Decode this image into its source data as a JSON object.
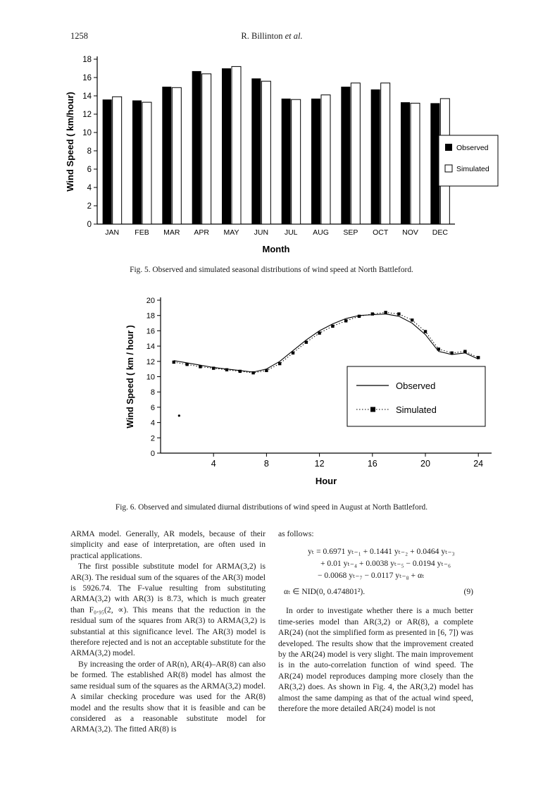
{
  "header": {
    "page_number": "1258",
    "author": "R. Billinton",
    "etal": "et al."
  },
  "figures": {
    "fig5_caption": "Fig. 5. Observed and simulated seasonal distributions of wind speed at North Battleford.",
    "fig6_caption": "Fig. 6. Observed and simulated diurnal distributions of wind speed in August at North Battleford."
  },
  "chart_data": [
    {
      "type": "bar",
      "title": "",
      "xlabel": "Month",
      "ylabel": "Wind Speed ( km/hour)",
      "ylim": [
        0,
        18
      ],
      "ytick_step": 2,
      "grid": false,
      "legend_position": "right",
      "categories": [
        "JAN",
        "FEB",
        "MAR",
        "APR",
        "MAY",
        "JUN",
        "JUL",
        "AUG",
        "SEP",
        "OCT",
        "NOV",
        "DEC"
      ],
      "series": [
        {
          "name": "Observed",
          "fill": "#000000",
          "values": [
            13.6,
            13.5,
            15.0,
            16.7,
            17.0,
            15.9,
            13.7,
            13.7,
            15.0,
            14.7,
            13.3,
            13.2
          ]
        },
        {
          "name": "Simulated",
          "fill": "#ffffff",
          "values": [
            13.9,
            13.3,
            14.9,
            16.4,
            17.2,
            15.6,
            13.6,
            14.1,
            15.4,
            15.4,
            13.2,
            13.7
          ]
        }
      ]
    },
    {
      "type": "line",
      "title": "",
      "xlabel": "Hour",
      "ylabel": "Wind Speed  ( km / hour )",
      "ylim": [
        0,
        20
      ],
      "ytick_step": 2,
      "xlim": [
        0,
        25
      ],
      "xticks": [
        4,
        8,
        12,
        16,
        20,
        24
      ],
      "grid": false,
      "legend_position": "inside-right",
      "x": [
        1,
        2,
        3,
        4,
        5,
        6,
        7,
        8,
        9,
        10,
        11,
        12,
        13,
        14,
        15,
        16,
        17,
        18,
        19,
        20,
        21,
        22,
        23,
        24
      ],
      "series": [
        {
          "name": "Observed",
          "style": "solid",
          "values": [
            12.1,
            11.8,
            11.5,
            11.2,
            11.0,
            10.8,
            10.6,
            11.0,
            12.0,
            13.4,
            14.8,
            16.0,
            16.9,
            17.6,
            18.0,
            18.1,
            18.2,
            17.9,
            17.0,
            15.5,
            13.3,
            12.9,
            13.1,
            12.3
          ]
        },
        {
          "name": "Simulated",
          "style": "dotted-square",
          "values": [
            11.9,
            11.6,
            11.3,
            11.1,
            10.9,
            10.7,
            10.5,
            10.8,
            11.7,
            13.1,
            14.5,
            15.7,
            16.6,
            17.3,
            17.9,
            18.2,
            18.4,
            18.2,
            17.4,
            15.9,
            13.6,
            13.1,
            13.3,
            12.5
          ]
        }
      ],
      "stray_mark": {
        "x": 1.4,
        "y": 4.9
      }
    }
  ],
  "body": {
    "left_column": [
      {
        "indent": false,
        "text": "ARMA model. Generally, AR models, because of their simplicity and ease of interpretation, are often used in practical applications."
      },
      {
        "indent": true,
        "text": "The first possible substitute model for ARMA(3,2) is AR(3). The residual sum of the squares of the AR(3) model is 5926.74. The F-value resulting from substituting ARMA(3,2) with AR(3) is 8.73, which is much greater than F₀.₉₅(2, ∝). This means that the reduction in the residual sum of the squares from AR(3) to ARMA(3,2) is substantial at this significance level. The AR(3) model is therefore rejected and is not an acceptable substitute for the ARMA(3,2) model."
      },
      {
        "indent": true,
        "text": "By increasing the order of AR(n), AR(4)–AR(8) can also be formed. The established AR(8) model has almost the same residual sum of the squares as the ARMA(3,2) model. A similar checking procedure was used for the AR(8) model and the results show that it is feasible and can be considered as a reasonable substitute model for ARMA(3,2). The fitted AR(8) is"
      }
    ],
    "right_intro": "as follows:",
    "equation": {
      "lines": [
        "yₜ = 0.6971 yₜ₋₁ + 0.1441 yₜ₋₂ + 0.0464 yₜ₋₃",
        "+ 0.01 yₜ₋₄ + 0.0038 yₜ₋₅ − 0.0194 yₜ₋₆",
        "− 0.0068 yₜ₋₇ − 0.0117 yₜ₋₈ + αₜ"
      ],
      "condition": "αₜ ∈ NID(0, 0.474801²).",
      "number": "(9)"
    },
    "right_column": [
      {
        "indent": true,
        "text": "In order to investigate whether there is a much better time-series model than AR(3,2) or AR(8), a complete AR(24) (not the simplified form as presented in [6, 7]) was developed. The results show that the improvement created by the AR(24) model is very slight. The main improvement is in the auto-correlation function of wind speed. The AR(24) model reproduces damping more closely than the AR(3,2) does. As shown in Fig. 4, the AR(3,2) model has almost the same damping as that of the actual wind speed, therefore the more detailed AR(24) model is not"
      }
    ]
  }
}
